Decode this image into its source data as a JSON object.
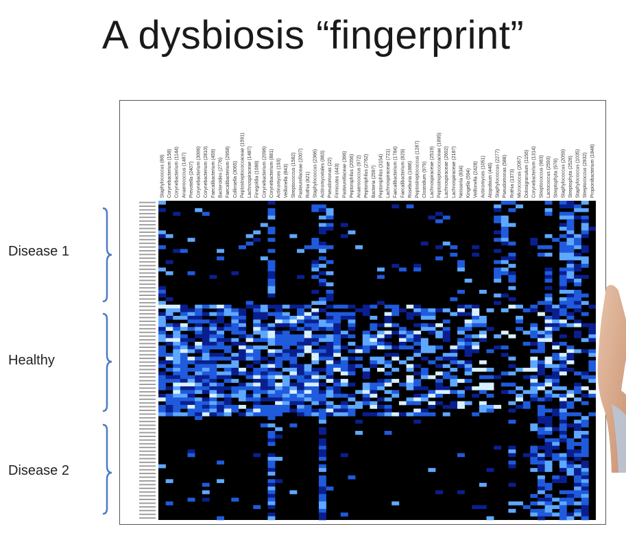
{
  "slide": {
    "title": "A dysbiosis “fingerprint”"
  },
  "groups": [
    {
      "label": "Disease 1",
      "rows": 28
    },
    {
      "label": "Healthy",
      "rows": 30
    },
    {
      "label": "Disease 2",
      "rows": 28
    }
  ],
  "chart_data": {
    "type": "heatmap",
    "title": "",
    "xlabel": "",
    "ylabel": "",
    "colormap": [
      "#000000",
      "#0a1f8f",
      "#1f5bdc",
      "#5fa8ff",
      "#d8f0ff"
    ],
    "columns": [
      "Staphylococcus (88)",
      "Corynebacterium (158)",
      "Corynebacterium (1144)",
      "Anaerococcus (1487)",
      "Prevotella (2407)",
      "Corynebacterium (3006)",
      "Corynebacterium (2810)",
      "Faecalibacterium (459)",
      "Bacteroides (2776)",
      "Faecalibacterium (2958)",
      "Collinsella (3065)",
      "Peptostreptococcaceae (1591)",
      "Lachnospiraceae (1487)",
      "Finegoldia (1088)",
      "Corynebacterium (2096)",
      "Corynebacterium (881)",
      "Actinomyces (193)",
      "Veillonella (843)",
      "Streptococcus (1582)",
      "Pasteurellaceae (2007)",
      "Rothia (821)",
      "Staphylococcus (2366)",
      "Actinomycetales (883)",
      "Pseudomonas (22)",
      "Firmicutes (443)",
      "Pasteurellaceae (366)",
      "Peptoniphilus (2056)",
      "Anaerococcus (972)",
      "Peptoniphilus (2762)",
      "Bacteria (2597)",
      "Peptoniphilus (3154)",
      "Lachnospiraceae (721)",
      "Faecalibacterium (1784)",
      "Faecalibacterium (829)",
      "Roseburia (1886)",
      "Peptostreptococcus (1287)",
      "Clostridium (979)",
      "Lachnospiraceae (2519)",
      "Peptostreptococcaceae (1895)",
      "Lachnospiraceae (2602)",
      "Lachnospiraceae (2187)",
      "Neisseria (834)",
      "Kingella (594)",
      "Veillonella (2428)",
      "Actinomyces (1051)",
      "Atopobium (446)",
      "Staphylococcus (2277)",
      "Pseudomonas (588)",
      "Rothia (1373)",
      "Micrococcus (2087)",
      "Dolosigranulum (1156)",
      "Corynebacterium (1314)",
      "Streptococcus (983)",
      "Lactococcus (2593)",
      "Streptophyta (976)",
      "Staphylococcus (2059)",
      "Streptophyta (2526)",
      "Staphylococcus (1035)",
      "Streptococcus (2932)",
      "Propionibacterium (1848)"
    ],
    "row_groups": [
      "Disease 1",
      "Healthy",
      "Disease 2"
    ],
    "row_counts": [
      28,
      30,
      28
    ],
    "row_label": "sample",
    "seed": 7
  }
}
